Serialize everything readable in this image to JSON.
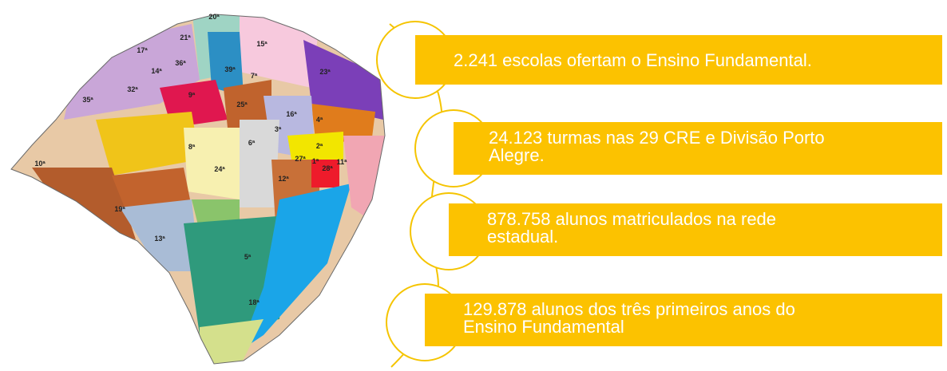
{
  "map": {
    "regions": [
      "20ª",
      "15ª",
      "21ª",
      "17ª",
      "36ª",
      "14ª",
      "39ª",
      "32ª",
      "9ª",
      "7ª",
      "23ª",
      "35ª",
      "25ª",
      "16ª",
      "4ª",
      "3ª",
      "6ª",
      "8ª",
      "2ª",
      "27ª",
      "1ª",
      "11ª",
      "28ª",
      "10ª",
      "24ª",
      "12ª",
      "19ª",
      "13ª",
      "5ª",
      "18ª"
    ]
  },
  "facts": [
    "2.241 escolas ofertam o Ensino Fundamental.",
    [
      "24.123 turmas nas 29 CRE e Divisão Porto",
      "Alegre."
    ],
    [
      "878.758 alunos matriculados na rede",
      "estadual."
    ],
    [
      "129.878 alunos dos três primeiros anos do",
      "Ensino Fundamental"
    ]
  ]
}
